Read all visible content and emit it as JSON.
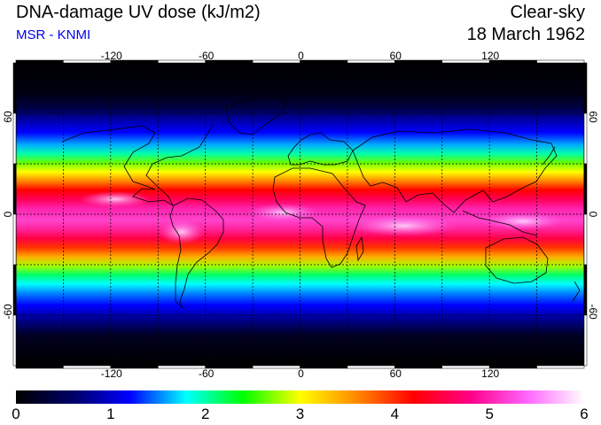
{
  "header": {
    "title": "DNA-damage UV dose (kJ/m2)",
    "source": "MSR - KNMI",
    "condition": "Clear-sky",
    "date": "18 March 1962"
  },
  "map": {
    "lon_ticks": [
      "-120",
      "-60",
      "0",
      "60",
      "120"
    ],
    "lat_ticks": [
      "60",
      "0",
      "-60"
    ],
    "grid_lon_step_deg": 30,
    "grid_lat_step_deg": 30
  },
  "colorbar": {
    "min": 0,
    "max": 6,
    "tick_labels": [
      "0",
      "1",
      "2",
      "3",
      "4",
      "5",
      "6"
    ],
    "stops": [
      "#000000",
      "#000066",
      "#0000ff",
      "#00ffff",
      "#00ff00",
      "#ffff00",
      "#ff8800",
      "#ff0000",
      "#ff0088",
      "#ff66ff",
      "#ffffff"
    ]
  }
}
